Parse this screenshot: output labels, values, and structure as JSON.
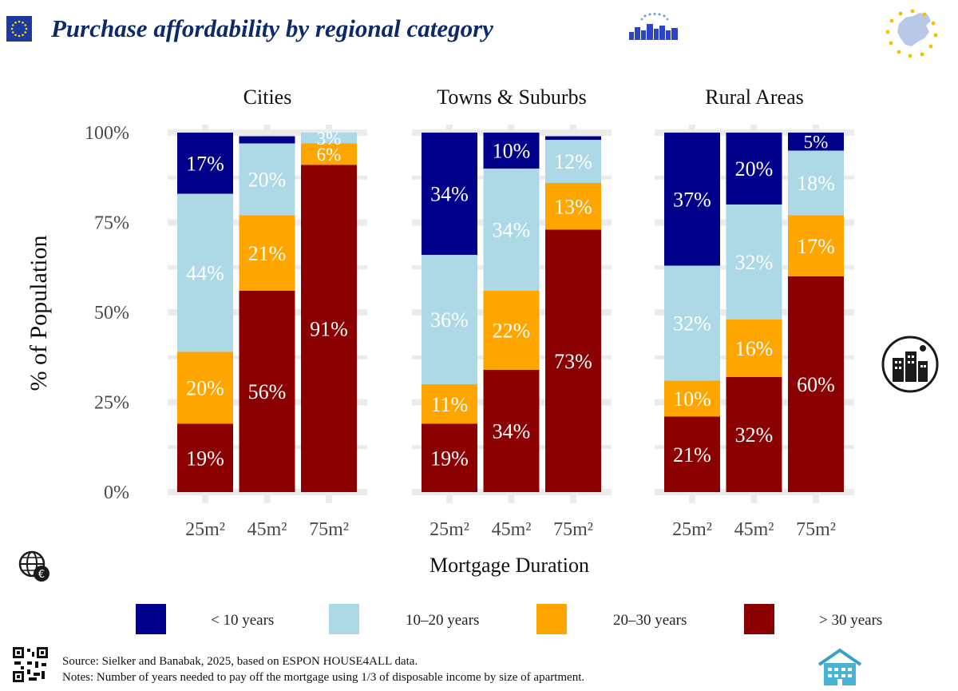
{
  "header": {
    "title": "Purchase affordability by regional category"
  },
  "colors": {
    "lt10": "#00008b",
    "y10_20": "#add8e6",
    "y20_30": "#ffa500",
    "gt30": "#8b0000",
    "panel_bg": "#ffffff",
    "grid": "#ebebeb"
  },
  "icons": {
    "eu_flag": "eu-flag-icon",
    "housing_logo": "city-skyline-logo-icon",
    "europe_map": "europe-map-stars-icon",
    "city": "city-buildings-icon",
    "globe_euro": "globe-euro-icon",
    "qr": "qr-code-icon",
    "house": "house-icon"
  },
  "chart_data": {
    "type": "bar",
    "stacked": true,
    "ylabel": "% of Population",
    "xlabel": "Mortgage Duration",
    "yticks": [
      "0%",
      "25%",
      "50%",
      "75%",
      "100%"
    ],
    "ylim": [
      0,
      100
    ],
    "grid": true,
    "legend_position": "bottom",
    "categories": [
      "25m²",
      "45m²",
      "75m²"
    ],
    "series_names": [
      "< 10 years",
      "10–20 years",
      "20–30 years",
      "> 30 years"
    ],
    "panels": [
      {
        "name": "Cities",
        "series": [
          {
            "name": "< 10 years",
            "values": [
              17,
              2,
              0
            ]
          },
          {
            "name": "10–20 years",
            "values": [
              44,
              20,
              3
            ]
          },
          {
            "name": "20–30 years",
            "values": [
              20,
              21,
              6
            ]
          },
          {
            "name": "> 30 years",
            "values": [
              19,
              56,
              91
            ]
          }
        ]
      },
      {
        "name": "Towns & Suburbs",
        "series": [
          {
            "name": "< 10 years",
            "values": [
              34,
              10,
              1
            ]
          },
          {
            "name": "10–20 years",
            "values": [
              36,
              34,
              12
            ]
          },
          {
            "name": "20–30 years",
            "values": [
              11,
              22,
              13
            ]
          },
          {
            "name": "> 30 years",
            "values": [
              19,
              34,
              73
            ]
          }
        ]
      },
      {
        "name": "Rural Areas",
        "series": [
          {
            "name": "< 10 years",
            "values": [
              37,
              20,
              5
            ]
          },
          {
            "name": "10–20 years",
            "values": [
              32,
              32,
              18
            ]
          },
          {
            "name": "20–30 years",
            "values": [
              10,
              16,
              17
            ]
          },
          {
            "name": "> 30 years",
            "values": [
              21,
              32,
              60
            ]
          }
        ]
      }
    ]
  },
  "footer": {
    "source": "Source: Sielker and Banabak, 2025, based on ESPON HOUSE4ALL data.",
    "notes": "Notes: Number of years needed to pay off the mortgage using 1/3 of disposable income by size of apartment."
  }
}
